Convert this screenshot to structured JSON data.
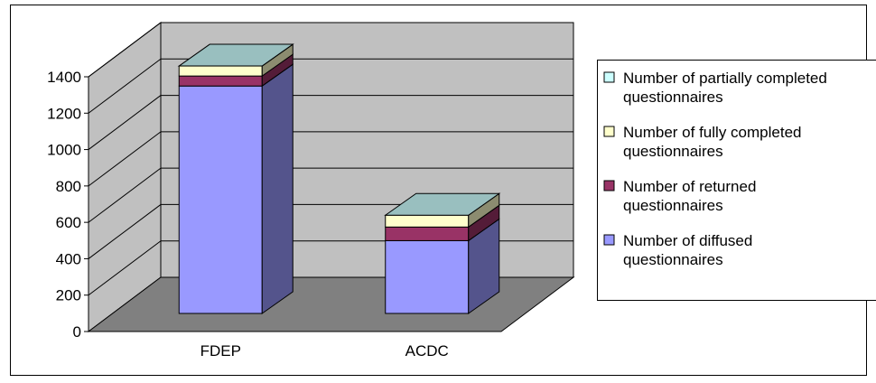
{
  "chart_data": {
    "type": "bar",
    "stacked": true,
    "three_d": true,
    "categories": [
      "FDEP",
      "ACDC"
    ],
    "series": [
      {
        "name": "Number of diffused questionnaires",
        "values": [
          1250,
          400
        ],
        "color": "#9999ff"
      },
      {
        "name": "Number of returned questionnaires",
        "values": [
          55,
          75
        ],
        "color": "#993366"
      },
      {
        "name": "Number of fully completed questionnaires",
        "values": [
          55,
          65
        ],
        "color": "#ffffcc"
      },
      {
        "name": "Number of partially completed questionnaires",
        "values": [
          0,
          0
        ],
        "color": "#ccffff"
      }
    ],
    "ylim": [
      0,
      1400
    ],
    "yticks": [
      "0",
      "200",
      "400",
      "600",
      "800",
      "1000",
      "1200",
      "1400"
    ],
    "legend_position": "right",
    "legend_lines": [
      [
        "Number of partially completed",
        "questionnaires"
      ],
      [
        "Number of fully completed",
        "questionnaires"
      ],
      [
        "Number of returned",
        "questionnaires"
      ],
      [
        "Number of diffused",
        "questionnaires"
      ]
    ],
    "grid": true,
    "wall_color": "#c0c0c0",
    "floor_color": "#808080"
  }
}
